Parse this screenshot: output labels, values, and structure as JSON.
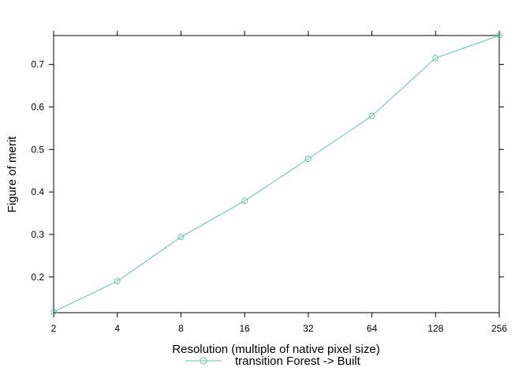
{
  "chart_data": {
    "type": "line",
    "title": "",
    "xlabel": "Resolution (multiple of native pixel size)",
    "ylabel": "Figure of merit",
    "x_scale": "log2",
    "x": [
      2,
      4,
      8,
      16,
      32,
      64,
      128,
      256
    ],
    "x_tick_labels": [
      "2",
      "4",
      "8",
      "16",
      "32",
      "64",
      "128",
      "256"
    ],
    "y_ticks": [
      0.2,
      0.3,
      0.4,
      0.5,
      0.6,
      0.7
    ],
    "y_tick_labels": [
      "0.2",
      "0.3",
      "0.4",
      "0.5",
      "0.6",
      "0.7"
    ],
    "xlim": [
      2,
      256
    ],
    "ylim": [
      0.116,
      0.768
    ],
    "grid": false,
    "legend_position": "bottom",
    "series": [
      {
        "name": "transition Forest -> Built",
        "color": "#66c2a5",
        "marker": "open-circle",
        "values": [
          0.118,
          0.19,
          0.294,
          0.379,
          0.478,
          0.579,
          0.715,
          0.768
        ]
      }
    ]
  }
}
